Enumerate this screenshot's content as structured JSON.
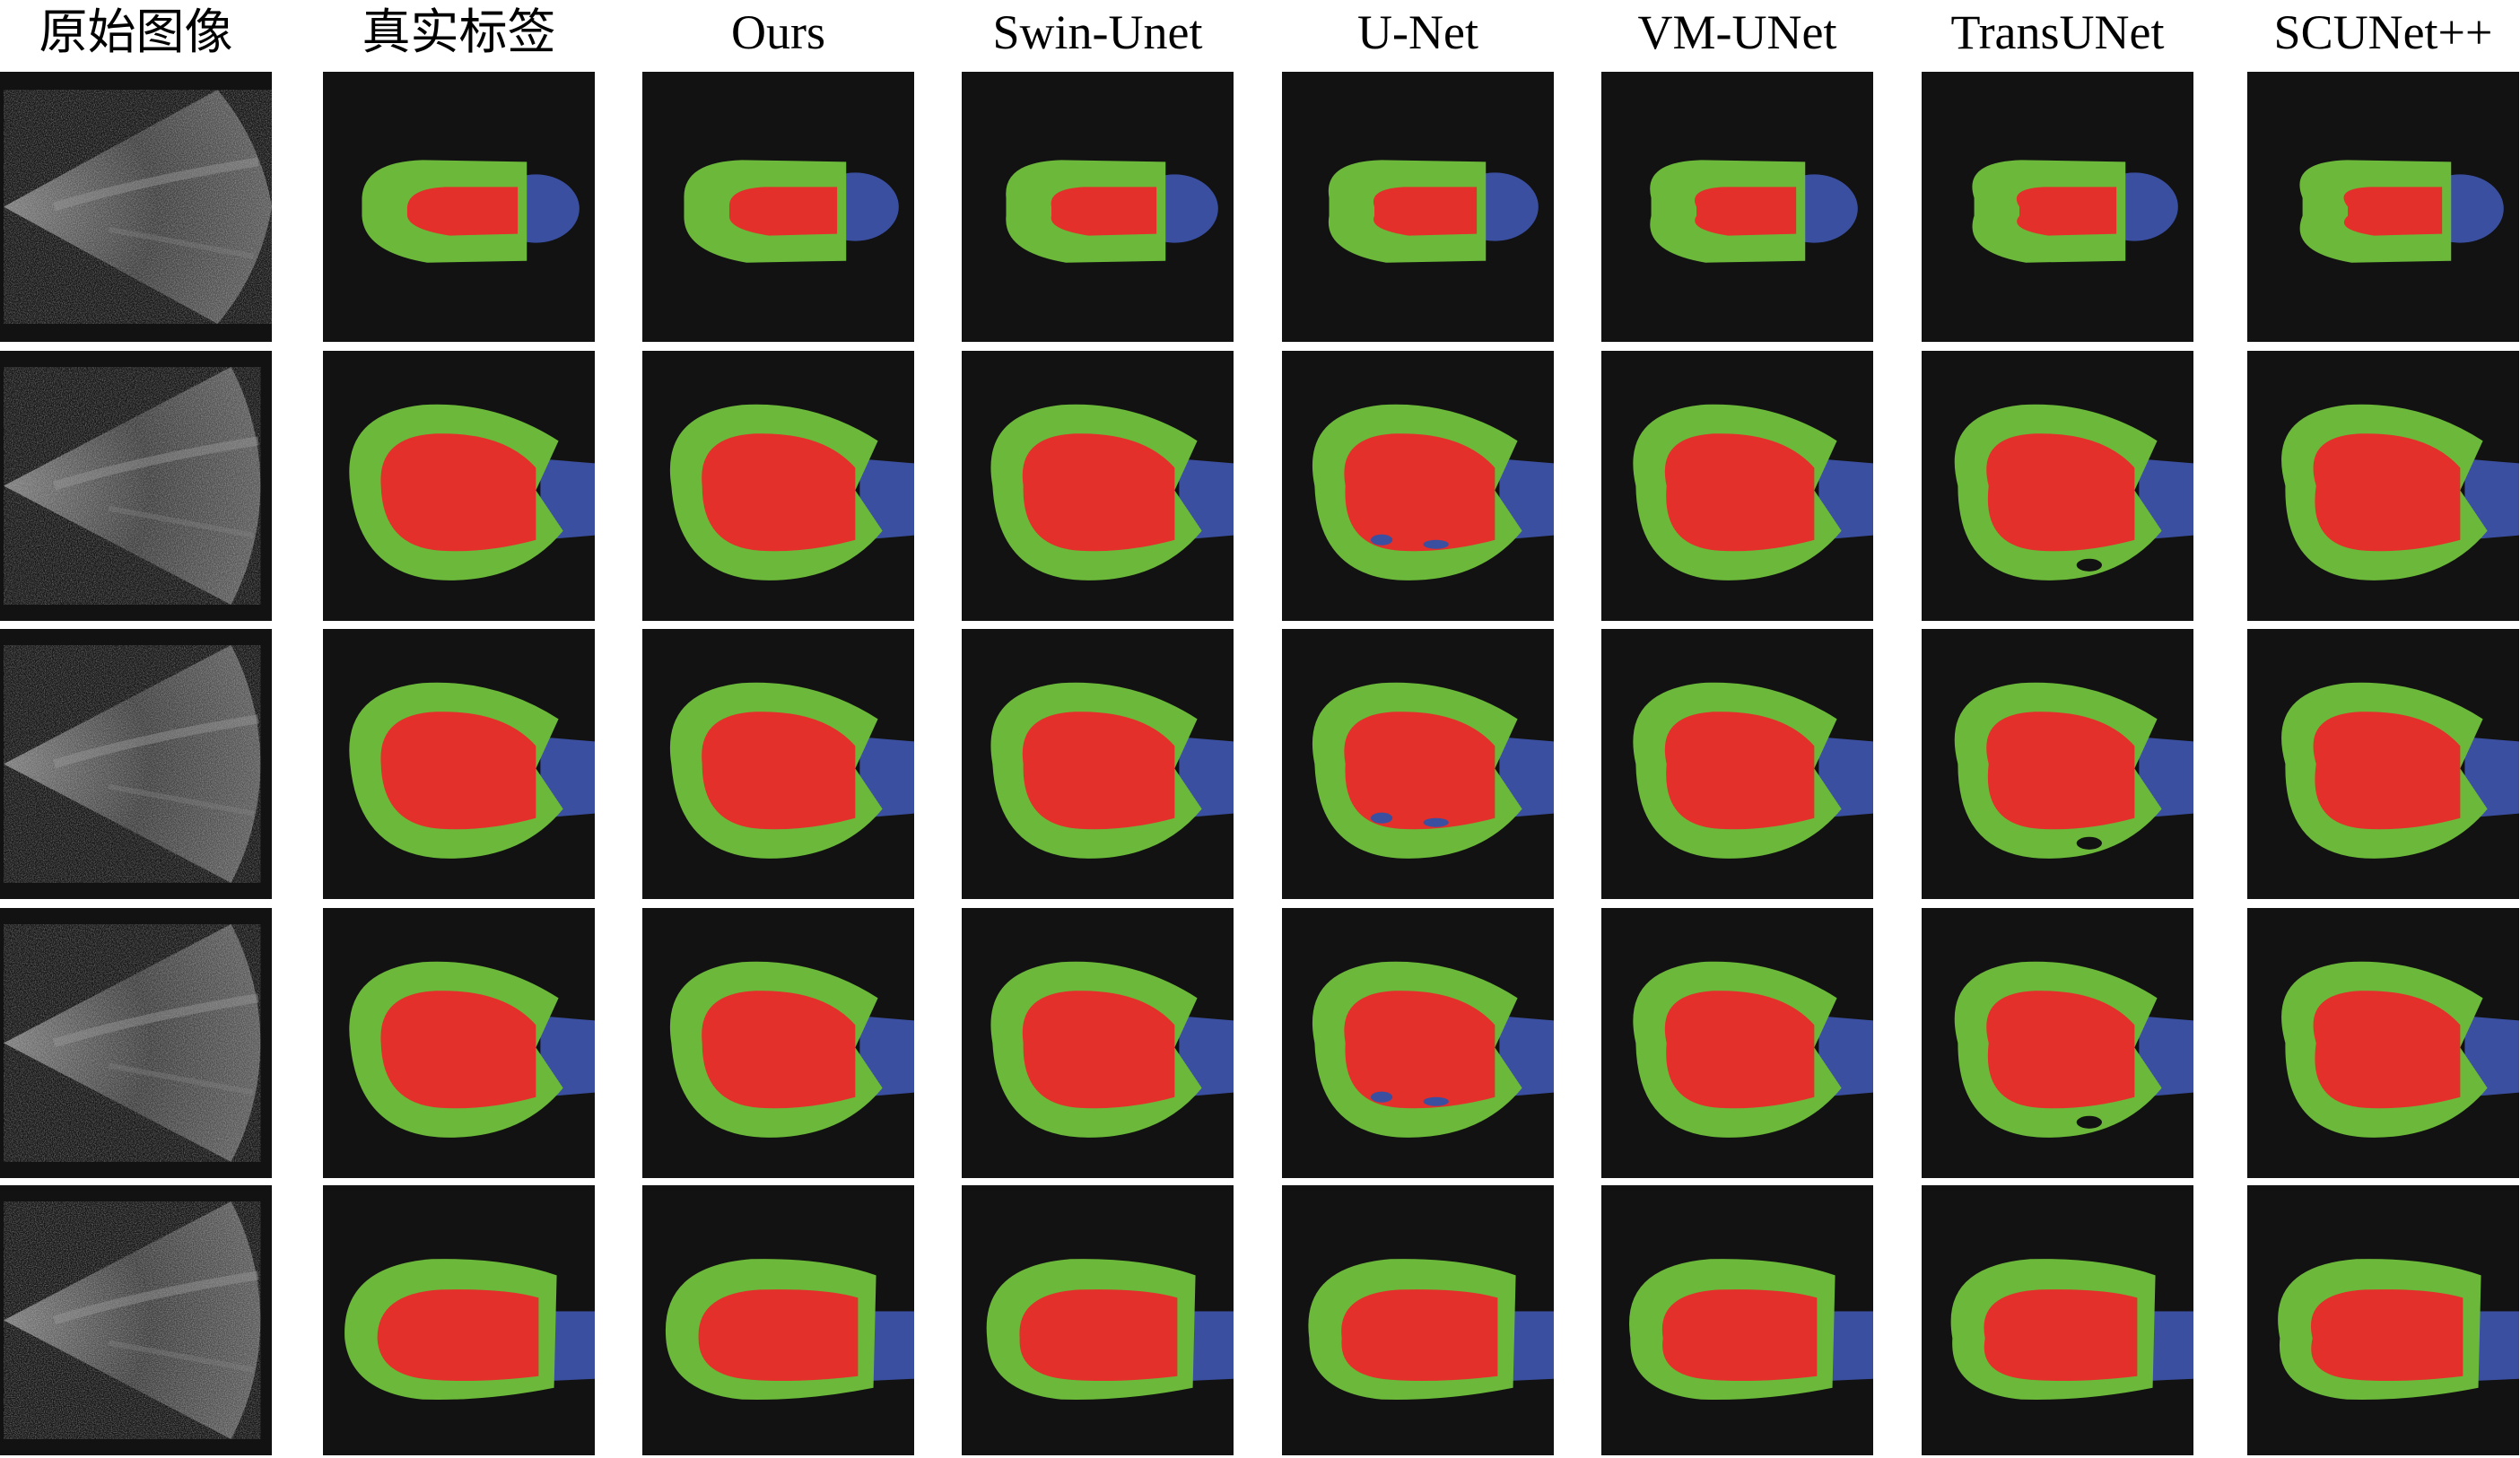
{
  "figure": {
    "columns": [
      {
        "id": "original",
        "label": "原始图像"
      },
      {
        "id": "ground-truth",
        "label": "真实标签"
      },
      {
        "id": "ours",
        "label": "Ours"
      },
      {
        "id": "swin-unet",
        "label": "Swin-Unet"
      },
      {
        "id": "u-net",
        "label": "U-Net"
      },
      {
        "id": "vm-unet",
        "label": "VM-UNet"
      },
      {
        "id": "transunet",
        "label": "TransUNet"
      },
      {
        "id": "scunet-pp",
        "label": "SCUNet++"
      }
    ],
    "row_count": 5,
    "colors": {
      "background": "#121212",
      "myocardium": "#6cb83a",
      "cavity": "#e3302b",
      "atrium": "#3a4fa0",
      "page": "#ffffff"
    }
  }
}
